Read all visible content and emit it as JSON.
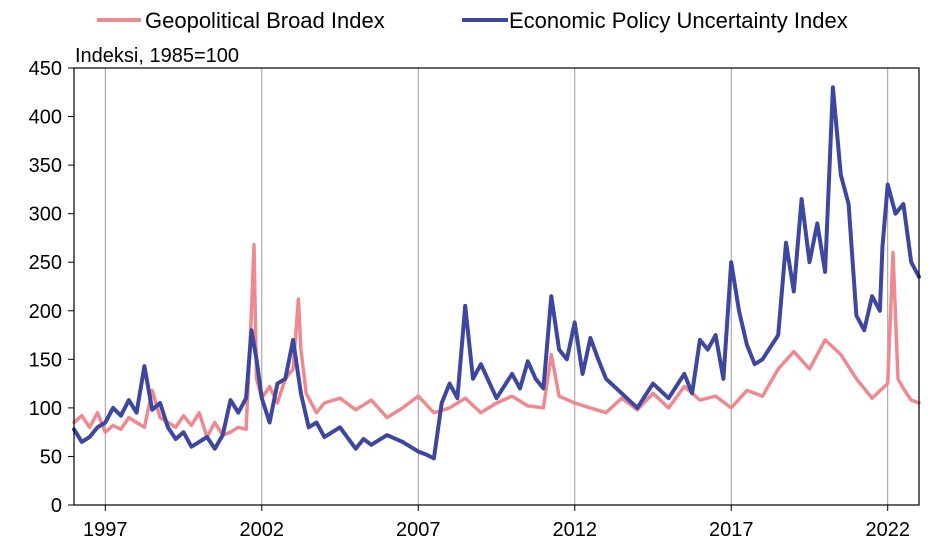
{
  "chart_data": {
    "type": "line",
    "ylabel": "Indeksi, 1985=100",
    "ylim": [
      0,
      450
    ],
    "yticks": [
      0,
      50,
      100,
      150,
      200,
      250,
      300,
      350,
      400,
      450
    ],
    "xlim": [
      1996.0,
      2023.0
    ],
    "xticks": [
      1997,
      2002,
      2007,
      2012,
      2017,
      2022
    ],
    "xtick_labels": [
      "1997",
      "2002",
      "2007",
      "2012",
      "2017",
      "2022"
    ],
    "grid": "vertical lines at year ticks",
    "legend_position": "top",
    "series": [
      {
        "name": "Geopolitical Broad Index",
        "color": "#ee8a8f",
        "x": [
          1996.0,
          1996.25,
          1996.5,
          1996.75,
          1997.0,
          1997.25,
          1997.5,
          1997.75,
          1998.0,
          1998.25,
          1998.5,
          1998.75,
          1999.0,
          1999.25,
          1999.5,
          1999.75,
          2000.0,
          2000.25,
          2000.5,
          2000.75,
          2001.0,
          2001.25,
          2001.5,
          2001.67,
          2001.75,
          2001.83,
          2002.0,
          2002.25,
          2002.5,
          2002.75,
          2003.0,
          2003.17,
          2003.25,
          2003.42,
          2003.75,
          2004.0,
          2004.5,
          2005.0,
          2005.5,
          2006.0,
          2006.5,
          2007.0,
          2007.5,
          2008.0,
          2008.5,
          2009.0,
          2009.5,
          2010.0,
          2010.5,
          2011.0,
          2011.25,
          2011.5,
          2012.0,
          2012.5,
          2013.0,
          2013.5,
          2014.0,
          2014.5,
          2015.0,
          2015.5,
          2016.0,
          2016.5,
          2017.0,
          2017.5,
          2018.0,
          2018.5,
          2019.0,
          2019.5,
          2020.0,
          2020.5,
          2021.0,
          2021.5,
          2021.83,
          2022.0,
          2022.17,
          2022.33,
          2022.5,
          2022.75,
          2023.0
        ],
        "values": [
          85,
          92,
          80,
          95,
          75,
          82,
          78,
          90,
          85,
          80,
          118,
          90,
          85,
          80,
          92,
          82,
          95,
          70,
          85,
          72,
          75,
          80,
          78,
          200,
          268,
          130,
          110,
          122,
          105,
          130,
          140,
          212,
          160,
          115,
          95,
          105,
          110,
          98,
          108,
          90,
          100,
          112,
          95,
          100,
          110,
          95,
          105,
          112,
          102,
          100,
          155,
          112,
          105,
          100,
          95,
          110,
          98,
          115,
          100,
          122,
          108,
          112,
          100,
          118,
          112,
          140,
          158,
          140,
          170,
          155,
          130,
          110,
          120,
          125,
          260,
          130,
          120,
          108,
          105
        ]
      },
      {
        "name": "Economic Policy Uncertainty Index",
        "color": "#3d47a0",
        "x": [
          1996.0,
          1996.25,
          1996.5,
          1996.75,
          1997.0,
          1997.25,
          1997.5,
          1997.75,
          1998.0,
          1998.25,
          1998.5,
          1998.75,
          1999.0,
          1999.25,
          1999.5,
          1999.75,
          2000.0,
          2000.25,
          2000.5,
          2000.75,
          2001.0,
          2001.25,
          2001.5,
          2001.67,
          2001.83,
          2002.0,
          2002.25,
          2002.5,
          2002.75,
          2003.0,
          2003.25,
          2003.5,
          2003.75,
          2004.0,
          2004.5,
          2005.0,
          2005.25,
          2005.5,
          2006.0,
          2006.5,
          2007.0,
          2007.25,
          2007.5,
          2007.75,
          2008.0,
          2008.25,
          2008.5,
          2008.75,
          2009.0,
          2009.5,
          2010.0,
          2010.25,
          2010.5,
          2010.75,
          2011.0,
          2011.25,
          2011.5,
          2011.75,
          2012.0,
          2012.25,
          2012.5,
          2012.75,
          2013.0,
          2013.5,
          2014.0,
          2014.5,
          2015.0,
          2015.5,
          2015.75,
          2016.0,
          2016.25,
          2016.5,
          2016.75,
          2017.0,
          2017.25,
          2017.5,
          2017.75,
          2018.0,
          2018.5,
          2018.75,
          2019.0,
          2019.25,
          2019.5,
          2019.75,
          2020.0,
          2020.25,
          2020.5,
          2020.75,
          2021.0,
          2021.25,
          2021.5,
          2021.75,
          2021.83,
          2022.0,
          2022.25,
          2022.5,
          2022.75,
          2023.0
        ],
        "values": [
          78,
          65,
          70,
          80,
          85,
          100,
          92,
          108,
          95,
          143,
          98,
          105,
          80,
          68,
          75,
          60,
          65,
          70,
          58,
          72,
          108,
          95,
          110,
          180,
          150,
          110,
          85,
          125,
          130,
          170,
          115,
          80,
          85,
          70,
          80,
          58,
          68,
          62,
          72,
          65,
          55,
          52,
          48,
          105,
          125,
          110,
          205,
          130,
          145,
          110,
          135,
          120,
          148,
          130,
          120,
          215,
          160,
          150,
          188,
          135,
          172,
          150,
          130,
          115,
          100,
          125,
          110,
          135,
          115,
          170,
          160,
          175,
          130,
          250,
          200,
          165,
          145,
          150,
          175,
          270,
          220,
          315,
          250,
          290,
          240,
          430,
          340,
          310,
          195,
          180,
          215,
          200,
          265,
          330,
          300,
          310,
          250,
          235
        ]
      }
    ]
  }
}
